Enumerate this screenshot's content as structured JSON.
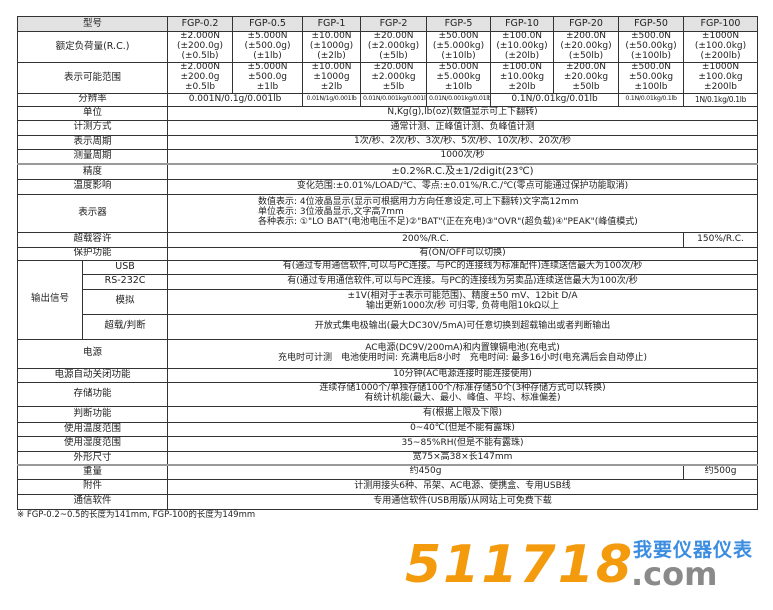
{
  "table": {
    "header_label": "型号",
    "models": [
      "FGP-0.2",
      "FGP-0.5",
      "FGP-1",
      "FGP-2",
      "FGP-5",
      "FGP-10",
      "FGP-20",
      "FGP-50",
      "FGP-100"
    ],
    "rated_load": {
      "label": "额定负荷量(R.C.)",
      "values": [
        [
          "±2.000N",
          "(±200.0g)",
          "(±0.5lb)"
        ],
        [
          "±5.000N",
          "(±500.0g)",
          "(±1lb)"
        ],
        [
          "±10.00N",
          "(±1000g)",
          "(±2lb)"
        ],
        [
          "±20.00N",
          "(±2.000kg)",
          "(±5lb)"
        ],
        [
          "±50.00N",
          "(±5.000kg)",
          "(±10lb)"
        ],
        [
          "±100.0N",
          "(±10.00kg)",
          "(±20lb)"
        ],
        [
          "±200.0N",
          "(±20.00kg)",
          "(±50lb)"
        ],
        [
          "±500.0N",
          "(±50.00kg)",
          "(±100lb)"
        ],
        [
          "±1000N",
          "(±100.0kg)",
          "(±200lb)"
        ]
      ]
    },
    "display_range": {
      "label": "表示可能范围",
      "values": [
        [
          "±2.000N",
          "±200.0g",
          "±0.5lb"
        ],
        [
          "±5.000N",
          "±500.0g",
          "±1lb"
        ],
        [
          "±10.00N",
          "±1000g",
          "±2lb"
        ],
        [
          "±20.00N",
          "±2.000kg",
          "±5lb"
        ],
        [
          "±50.00N",
          "±5.000kg",
          "±10lb"
        ],
        [
          "±100.0N",
          "±10.00kg",
          "±20lb"
        ],
        [
          "±200.0N",
          "±20.00kg",
          "±50lb"
        ],
        [
          "±500.0N",
          "±50.00kg",
          "±100lb"
        ],
        [
          "±1000N",
          "±100.0kg",
          "±200lb"
        ]
      ]
    },
    "resolution": {
      "label": "分辨率",
      "values": [
        "0.001N/0.1g/0.001lb",
        "0.01N/1g/0.001lb",
        "0.01N/0.001kg/0.001lb",
        "0.01N/0.001kg/0.01lb",
        "0.1N/0.01kg/0.01lb",
        "0.1N/0.01kg/0.1lb",
        "1N/0.1kg/0.1lb"
      ]
    },
    "unit": {
      "label": "单位",
      "value": "N,Kg(g),lb(oz)(数值显示可上下翻转)"
    },
    "method": {
      "label": "计测方式",
      "value": "通常计测、正峰值计测、负峰值计测"
    },
    "display_period": {
      "label": "表示周期",
      "value": "1次/秒、2次/秒、3次/秒、5次/秒、10次/秒、20次/秒"
    },
    "measure_period": {
      "label": "测量周期",
      "value": "1000次/秒"
    },
    "accuracy": {
      "label": "精度",
      "value": "±0.2%R.C.及±1/2digit(23℃)"
    },
    "temp_effect": {
      "label": "温度影响",
      "value": "变化范围:±0.01%/LOAD/℃、零点:±0.01%/R.C./℃(零点可能通过保护功能取消)"
    },
    "display": {
      "label": "表示器",
      "lines": [
        "数值表示: 4位液晶显示(显示可根据用力方向任意设定,可上下翻转)文字高12mm",
        "单位表示: 3位液晶显示,文字高7mm",
        "各种表示: ①\"LO BAT\"(电池电压不足)②\"BAT\"(正在充电)③\"OVR\"(超负载)④\"PEAK\"(峰值模式)"
      ]
    },
    "overload": {
      "label": "超载容许",
      "value": "200%/R.C.",
      "value_100": "150%/R.C."
    },
    "protection": {
      "label": "保护功能",
      "value": "有(ON/OFF可以切换)"
    },
    "output": {
      "label": "输出信号",
      "usb": {
        "label": "USB",
        "value": "有(通过专用通信软件,可以与PC连接。与PC的连接线为标准配件)连续送信最大为100次/秒"
      },
      "rs232c": {
        "label": "RS-232C",
        "value": "有(通过专用通信软件,可以与PC连接。与PC的连接线为另卖品)连续送信最大为100次/秒"
      },
      "analog": {
        "label": "模拟",
        "lines": [
          "±1V(相对于±表示可能范围)、精度±50 mV、12bit D/A",
          "输出更新1000次/秒 可归零, 负荷电阻10kΩ以上"
        ]
      },
      "judge": {
        "label": "超载/判断",
        "value": "开放式集电极输出(最大DC30V/5mA)可任意切换到超载输出或者判断输出"
      }
    },
    "power": {
      "label": "电源",
      "lines": [
        "AC电源(DC9V/200mA)和内置镍镉电池(充电式)",
        "充电时可计测　电池使用时间: 充满电后8小时　充电时间: 最多16小时(电充满后会自动停止)"
      ]
    },
    "auto_off": {
      "label": "电源自动关闭功能",
      "value": "10分钟(AC电源连接时能连接使用)"
    },
    "storage": {
      "label": "存储功能",
      "lines": [
        "连续存储1000个/单独存储100个/标准存储50个(3种存储方式可以转换)",
        "有统计机能(最大、最小、峰值、平均、标准偏差)"
      ]
    },
    "judge_func": {
      "label": "判断功能",
      "value": "有(根据上限及下限)"
    },
    "temp_range": {
      "label": "使用温度范围",
      "value": "0~40℃(但是不能有露珠)"
    },
    "humidity_range": {
      "label": "使用湿度范围",
      "value": "35~85%RH(但是不能有露珠)"
    },
    "dimensions": {
      "label": "外形尺寸",
      "value": "宽75×高38×长147mm"
    },
    "weight": {
      "label": "重量",
      "value": "约450g",
      "value_100": "约500g"
    },
    "accessories": {
      "label": "附件",
      "value": "计测用接头6种、吊架、AC电源、便携盒、专用USB线"
    },
    "software": {
      "label": "通信软件",
      "value": "专用通信软件(USB用版)从网站上可免费下载"
    }
  },
  "footnote": "※  FGP-0.2~0.5的长度为141mm, FGP-100的长度为149mm",
  "watermark": {
    "number": "511718",
    "cn": "我要仪器仪表",
    "domain": ".com",
    "colors": {
      "number": "#f39a0d",
      "cn": "#3b8de0",
      "domain": "#8a8a8a"
    }
  }
}
